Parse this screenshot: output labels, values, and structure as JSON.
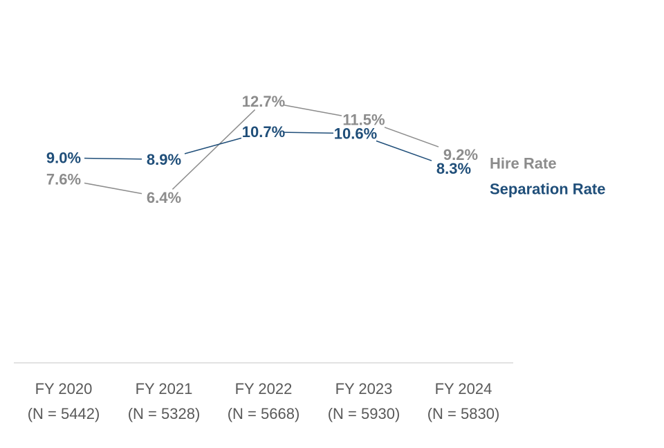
{
  "chart_data": {
    "type": "line",
    "title": "",
    "xlabel": "",
    "ylabel": "",
    "categories": [
      "FY 2020",
      "FY 2021",
      "FY 2022",
      "FY 2023",
      "FY 2024"
    ],
    "category_notes": [
      "(N = 5442)",
      "(N = 5328)",
      "(N = 5668)",
      "(N = 5930)",
      "(N = 5830)"
    ],
    "ylim": [
      0,
      16
    ],
    "grid": false,
    "legend": "right",
    "series": [
      {
        "name": "Hire Rate",
        "color": "#8c8c8c",
        "values": [
          7.6,
          6.4,
          12.7,
          11.5,
          9.2
        ],
        "labels": [
          "7.6%",
          "6.4%",
          "12.7%",
          "11.5%",
          "9.2%"
        ]
      },
      {
        "name": "Separation Rate",
        "color": "#1f4e79",
        "values": [
          9.0,
          8.9,
          10.7,
          10.6,
          8.3
        ],
        "labels": [
          "9.0%",
          "8.9%",
          "10.7%",
          "10.6%",
          "8.3%"
        ]
      }
    ]
  }
}
